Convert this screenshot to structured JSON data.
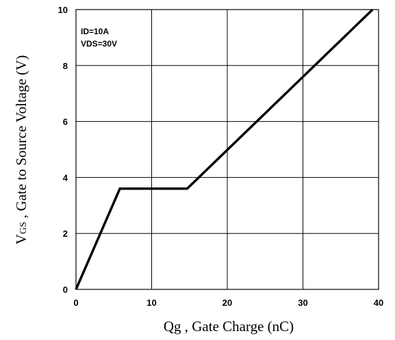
{
  "chart_data": {
    "type": "line",
    "xlabel": "Qg , Gate Charge (nC)",
    "ylabel": {
      "main_start": "V",
      "subscript": "GS",
      "main_end": " , Gate to Source Voltage (V)"
    },
    "xlim": [
      0,
      40
    ],
    "ylim": [
      0,
      10
    ],
    "x_ticks": [
      "0",
      "10",
      "20",
      "30",
      "40"
    ],
    "y_ticks": [
      "0",
      "2",
      "4",
      "6",
      "8",
      "10"
    ],
    "grid": true,
    "annotations": [
      "ID=10A",
      "VDS=30V"
    ],
    "series": [
      {
        "x": [
          0,
          5.8,
          14.7,
          39.2
        ],
        "y": [
          0,
          3.6,
          3.6,
          10
        ]
      }
    ]
  }
}
